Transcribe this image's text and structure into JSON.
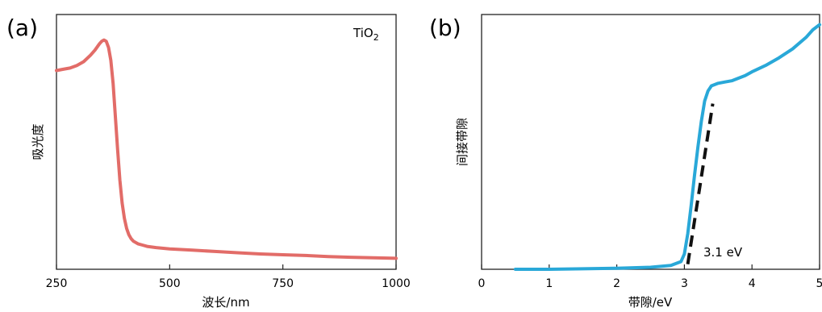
{
  "chart_data": [
    {
      "panel_label": "(a)",
      "type": "line",
      "xlabel": "波长/nm",
      "ylabel": "吸光度",
      "xlim": [
        250,
        1000
      ],
      "ylim": [
        0,
        1
      ],
      "y_tick_labels": "none",
      "xticks": [
        250,
        500,
        750,
        1000
      ],
      "x_tick_labels": [
        "250",
        "500",
        "750",
        "1000"
      ],
      "annotation": {
        "text_main": "TiO",
        "text_sub": "2",
        "placement": "top-right"
      },
      "grid": false,
      "series": [
        {
          "color": "#e26c68",
          "x": [
            250,
            265,
            280,
            295,
            310,
            325,
            335,
            345,
            350,
            355,
            360,
            365,
            370,
            375,
            380,
            385,
            390,
            395,
            400,
            405,
            410,
            415,
            420,
            430,
            440,
            450,
            470,
            500,
            550,
            600,
            650,
            700,
            750,
            800,
            850,
            900,
            950,
            1000
          ],
          "y": [
            0.78,
            0.785,
            0.79,
            0.8,
            0.815,
            0.84,
            0.86,
            0.885,
            0.895,
            0.9,
            0.895,
            0.87,
            0.82,
            0.73,
            0.6,
            0.47,
            0.35,
            0.26,
            0.2,
            0.16,
            0.135,
            0.12,
            0.11,
            0.1,
            0.095,
            0.09,
            0.085,
            0.08,
            0.075,
            0.07,
            0.065,
            0.06,
            0.057,
            0.054,
            0.05,
            0.047,
            0.045,
            0.043
          ]
        }
      ]
    },
    {
      "panel_label": "(b)",
      "type": "line",
      "xlabel": "带隙/eV",
      "ylabel": "间接带隙",
      "xlim": [
        0,
        5
      ],
      "ylim": [
        0,
        1
      ],
      "y_tick_labels": "none",
      "xticks": [
        0,
        1,
        2,
        3,
        4,
        5
      ],
      "x_tick_labels": [
        "0",
        "1",
        "2",
        "3",
        "4",
        "5"
      ],
      "grid": false,
      "series": [
        {
          "color": "#29a8d8",
          "x": [
            0.5,
            1.0,
            1.5,
            2.0,
            2.5,
            2.8,
            2.95,
            3.0,
            3.05,
            3.1,
            3.15,
            3.2,
            3.25,
            3.3,
            3.35,
            3.4,
            3.5,
            3.6,
            3.7,
            3.8,
            3.9,
            4.0,
            4.2,
            4.4,
            4.6,
            4.8,
            4.9,
            5.0
          ],
          "y": [
            0.0,
            0.0,
            0.002,
            0.004,
            0.008,
            0.015,
            0.03,
            0.06,
            0.14,
            0.25,
            0.37,
            0.48,
            0.58,
            0.66,
            0.7,
            0.72,
            0.73,
            0.735,
            0.74,
            0.75,
            0.76,
            0.775,
            0.8,
            0.83,
            0.865,
            0.91,
            0.94,
            0.96
          ]
        }
      ],
      "fit_line": {
        "x": [
          3.05,
          3.42
        ],
        "y": [
          0.02,
          0.65
        ],
        "style": "dashed",
        "color": "#111111"
      },
      "annotation": {
        "text": "3.1 eV"
      }
    }
  ]
}
